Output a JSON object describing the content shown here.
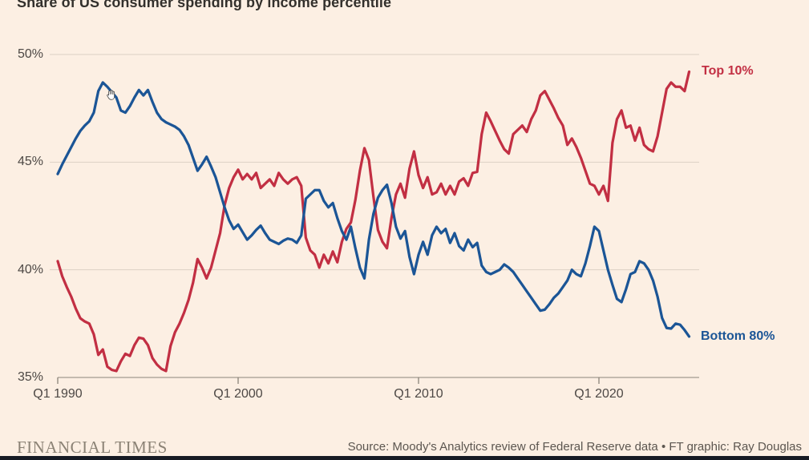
{
  "title": "Share of US consumer spending by income percentile",
  "footer": {
    "brand": "FINANCIAL TIMES",
    "source": "Source: Moody's Analytics review of Federal Reserve data • FT graphic: Ray Douglas"
  },
  "colors": {
    "background": "#fcefe3",
    "top10_red": "#c22f43",
    "bottom80_blue": "#1b5596",
    "gridline": "#ddd0c4",
    "axis": "#a39a90",
    "tick": "#8b8378",
    "text": "#4d4845"
  },
  "icons": {
    "cursor": "open-hand-cursor"
  },
  "chart_data": {
    "type": "line",
    "title": "Share of US consumer spending by income percentile",
    "x_unit": "quarter",
    "x_start": "Q1 1990",
    "x_end": "Q1 2025",
    "grid": "horizontal-only",
    "legend_position": "end-of-line-labels",
    "ylim": [
      35,
      50
    ],
    "y_axis": {
      "ticks": [
        {
          "value": 50,
          "label": "50%"
        },
        {
          "value": 45,
          "label": "45%"
        },
        {
          "value": 40,
          "label": "40%"
        },
        {
          "value": 35,
          "label": "35%"
        }
      ],
      "gridline_values": [
        50,
        45,
        40
      ],
      "baseline_value": 35
    },
    "x_axis": {
      "ticks": [
        {
          "year": 1990,
          "label": "Q1 1990"
        },
        {
          "year": 2000,
          "label": "Q1 2000"
        },
        {
          "year": 2010,
          "label": "Q1 2010"
        },
        {
          "year": 2020,
          "label": "Q1 2020"
        }
      ]
    },
    "series": [
      {
        "name": "Top 10%",
        "color": "#c22f43",
        "values": [
          40.4,
          39.7,
          39.2,
          38.75,
          38.2,
          37.75,
          37.6,
          37.5,
          37.0,
          36.05,
          36.3,
          35.5,
          35.35,
          35.3,
          35.75,
          36.1,
          36.0,
          36.5,
          36.85,
          36.8,
          36.5,
          35.9,
          35.6,
          35.4,
          35.3,
          36.45,
          37.1,
          37.5,
          38.0,
          38.6,
          39.4,
          40.5,
          40.1,
          39.6,
          40.1,
          40.9,
          41.7,
          43.0,
          43.8,
          44.3,
          44.65,
          44.2,
          44.45,
          44.2,
          44.5,
          43.8,
          44.0,
          44.2,
          43.9,
          44.5,
          44.2,
          44.0,
          44.2,
          44.3,
          43.9,
          41.5,
          40.9,
          40.7,
          40.1,
          40.7,
          40.3,
          40.85,
          40.35,
          41.3,
          41.9,
          42.2,
          43.25,
          44.6,
          45.65,
          45.1,
          43.4,
          41.85,
          41.3,
          41.0,
          42.4,
          43.5,
          44.0,
          43.35,
          44.7,
          45.5,
          44.4,
          43.8,
          44.3,
          43.5,
          43.6,
          44.0,
          43.5,
          43.9,
          43.5,
          44.1,
          44.25,
          43.9,
          44.5,
          44.55,
          46.3,
          47.3,
          46.9,
          46.45,
          46.0,
          45.6,
          45.4,
          46.3,
          46.5,
          46.7,
          46.4,
          47.0,
          47.4,
          48.1,
          48.3,
          47.9,
          47.5,
          47.05,
          46.7,
          45.8,
          46.1,
          45.7,
          45.2,
          44.6,
          44.0,
          43.9,
          43.5,
          43.9,
          43.2,
          45.9,
          47.0,
          47.4,
          46.6,
          46.7,
          46.0,
          46.6,
          45.8,
          45.6,
          45.5,
          46.2,
          47.3,
          48.4,
          48.7,
          48.5,
          48.5,
          48.3,
          49.2
        ]
      },
      {
        "name": "Bottom 80%",
        "color": "#1b5596",
        "values": [
          44.45,
          44.9,
          45.3,
          45.7,
          46.1,
          46.45,
          46.7,
          46.9,
          47.3,
          48.3,
          48.7,
          48.5,
          48.25,
          48.0,
          47.4,
          47.3,
          47.6,
          48.0,
          48.35,
          48.1,
          48.35,
          47.8,
          47.3,
          47.0,
          46.85,
          46.75,
          46.65,
          46.5,
          46.2,
          45.8,
          45.2,
          44.6,
          44.9,
          45.25,
          44.8,
          44.3,
          43.6,
          42.9,
          42.3,
          41.9,
          42.1,
          41.75,
          41.4,
          41.6,
          41.85,
          42.05,
          41.7,
          41.4,
          41.3,
          41.2,
          41.35,
          41.45,
          41.4,
          41.25,
          41.6,
          43.3,
          43.5,
          43.7,
          43.7,
          43.2,
          42.9,
          43.1,
          42.4,
          41.8,
          41.4,
          42.0,
          41.0,
          40.1,
          39.6,
          41.4,
          42.6,
          43.35,
          43.7,
          43.95,
          43.1,
          42.0,
          41.45,
          41.8,
          40.6,
          39.8,
          40.7,
          41.3,
          40.7,
          41.6,
          42.0,
          41.7,
          41.9,
          41.25,
          41.7,
          41.1,
          40.9,
          41.4,
          41.05,
          41.25,
          40.2,
          39.9,
          39.8,
          39.9,
          40.0,
          40.25,
          40.1,
          39.9,
          39.6,
          39.3,
          39.0,
          38.7,
          38.4,
          38.1,
          38.15,
          38.4,
          38.7,
          38.9,
          39.2,
          39.5,
          40.0,
          39.8,
          39.7,
          40.3,
          41.1,
          42.0,
          41.8,
          40.9,
          40.0,
          39.3,
          38.65,
          38.5,
          39.1,
          39.8,
          39.9,
          40.4,
          40.3,
          40.0,
          39.5,
          38.75,
          37.76,
          37.3,
          37.27,
          37.5,
          37.45,
          37.2,
          36.9
        ]
      }
    ]
  }
}
